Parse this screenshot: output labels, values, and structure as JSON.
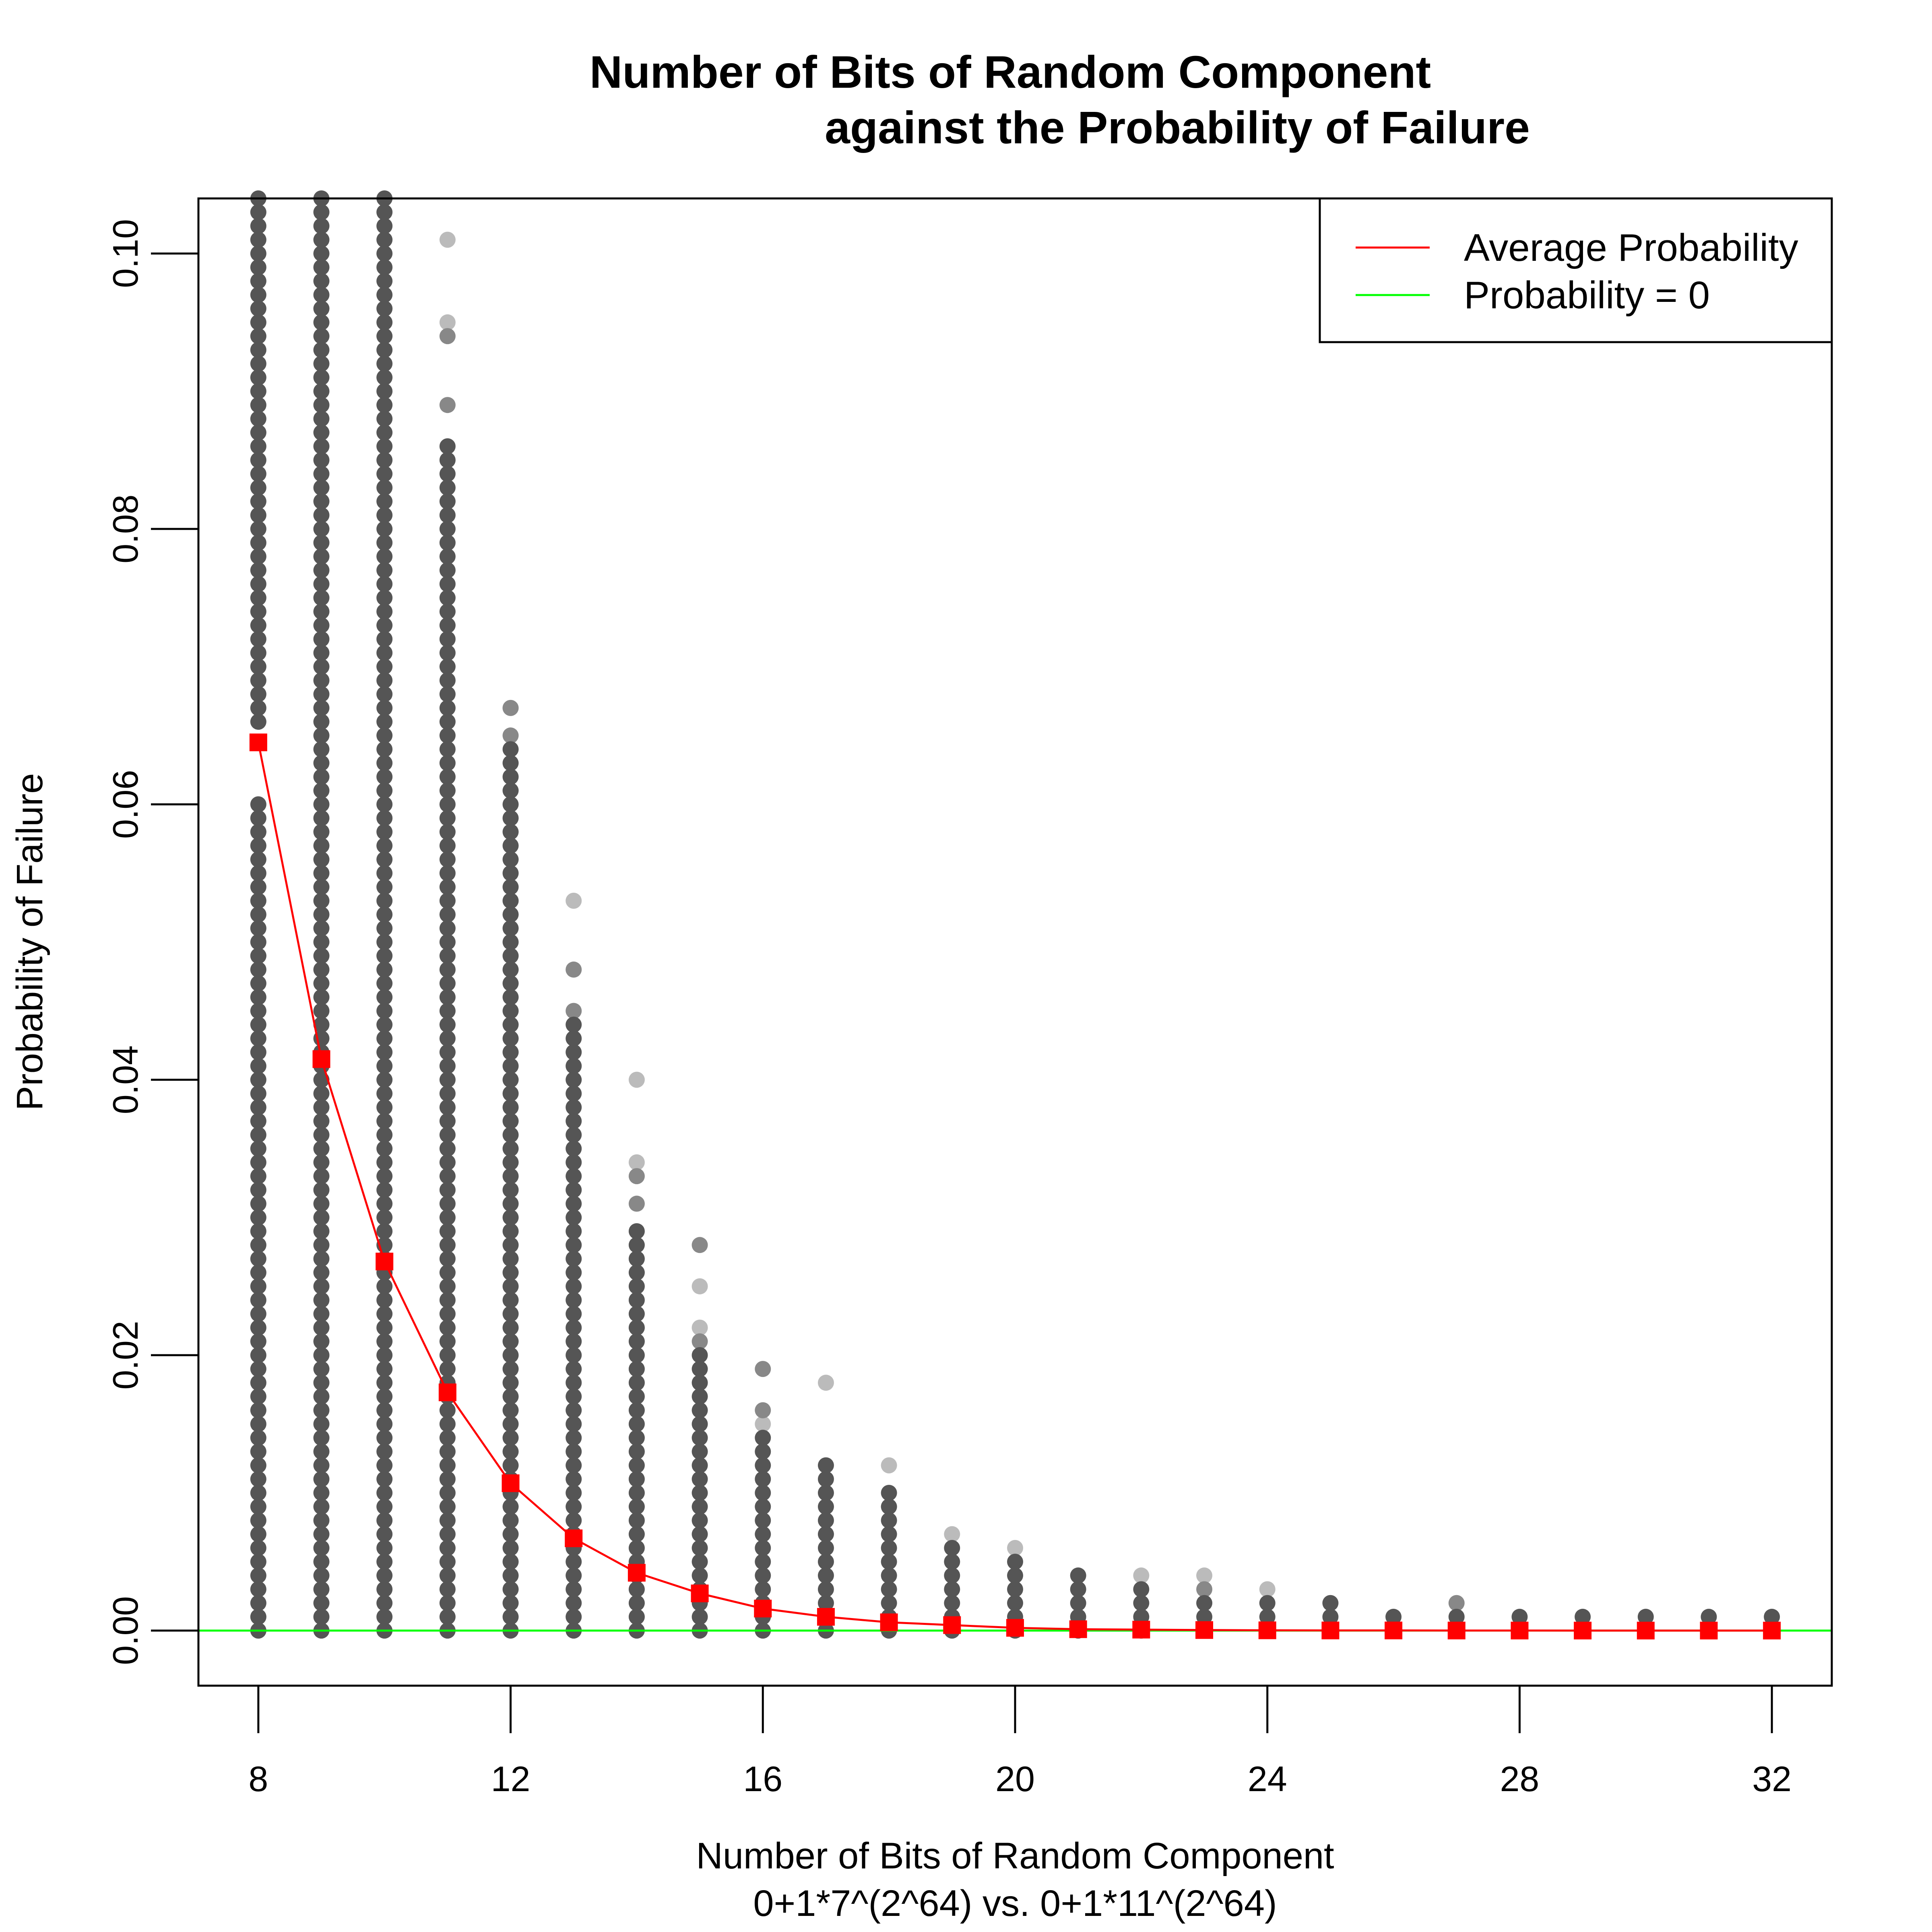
{
  "chart_data": {
    "type": "scatter",
    "title_line1": "Number of Bits of Random Component",
    "title_line2": "against the Probability of Failure",
    "xlabel_line1": "Number of Bits of Random Component",
    "xlabel_line2": "0+1*7^(2^64) vs. 0+1*11^(2^64)",
    "ylabel": "Probability of Failure",
    "xlim": [
      7.05,
      32.95
    ],
    "ylim": [
      -0.004,
      0.104
    ],
    "x_ticks": [
      "8",
      "12",
      "16",
      "20",
      "24",
      "28",
      "32"
    ],
    "y_ticks": [
      "0.00",
      "0.02",
      "0.04",
      "0.06",
      "0.08",
      "0.10"
    ],
    "legend": {
      "position": "top-right",
      "entries": [
        {
          "label": "Average Probability",
          "color": "#ff0000"
        },
        {
          "label": "Probability = 0",
          "color": "#00ff00"
        }
      ]
    },
    "colors": {
      "dense_points": "#555555",
      "mid_points": "#888888",
      "sparse_points": "#bbbbbb",
      "average": "#ff0000",
      "zero_line": "#00ff00"
    },
    "reference_line": {
      "y": 0
    },
    "series": [
      {
        "name": "Average Probability",
        "x": [
          8,
          9,
          10,
          11,
          12,
          13,
          14,
          15,
          16,
          17,
          18,
          19,
          20,
          21,
          22,
          23,
          24,
          25,
          26,
          27,
          28,
          29,
          30,
          31,
          32
        ],
        "y": [
          0.0645,
          0.0415,
          0.0268,
          0.0173,
          0.0107,
          0.0067,
          0.0042,
          0.0027,
          0.0016,
          0.001,
          0.0006,
          0.0004,
          0.0002,
          0.0001,
          7e-05,
          4e-05,
          2e-05,
          1e-05,
          1e-05,
          5e-06,
          3e-06,
          2e-06,
          1e-06,
          1e-06,
          1e-06
        ]
      }
    ],
    "point_columns": [
      {
        "x": 8,
        "dense": [
          0.0,
          0.06,
          0.066,
          0.104
        ],
        "mid": [
          0.049,
          0.058
        ],
        "sparse": [
          0.0,
          0.001,
          0.051,
          0.057
        ]
      },
      {
        "x": 9,
        "dense": [
          0.0,
          0.104
        ],
        "mid": [],
        "sparse": [
          0.02
        ]
      },
      {
        "x": 10,
        "dense": [
          0.0,
          0.104
        ],
        "mid": [],
        "sparse": []
      },
      {
        "x": 11,
        "dense": [
          0.0,
          0.086
        ],
        "mid": [
          0.089,
          0.094
        ],
        "sparse": [
          0.085,
          0.095,
          0.101
        ]
      },
      {
        "x": 12,
        "dense": [
          0.0,
          0.064
        ],
        "mid": [
          0.065,
          0.067
        ],
        "sparse": [
          0.053,
          0.067
        ]
      },
      {
        "x": 13,
        "dense": [
          0.0,
          0.044
        ],
        "mid": [
          0.045,
          0.048
        ],
        "sparse": [
          0.041,
          0.053
        ]
      },
      {
        "x": 14,
        "dense": [
          0.0,
          0.029
        ],
        "mid": [
          0.031,
          0.033
        ],
        "sparse": [
          0.034,
          0.04
        ]
      },
      {
        "x": 15,
        "dense": [
          0.0,
          0.02
        ],
        "mid": [
          0.021,
          0.028
        ],
        "sparse": [
          0.022,
          0.025
        ]
      },
      {
        "x": 16,
        "dense": [
          0.0,
          0.014
        ],
        "mid": [
          0.016,
          0.019
        ],
        "sparse": [
          0.015
        ]
      },
      {
        "x": 17,
        "dense": [
          0.0,
          0.012
        ],
        "mid": [],
        "sparse": [
          0.018
        ]
      },
      {
        "x": 18,
        "dense": [
          0.0,
          0.01
        ],
        "mid": [],
        "sparse": [
          0.009,
          0.012
        ]
      },
      {
        "x": 19,
        "dense": [
          0.0,
          0.006
        ],
        "mid": [],
        "sparse": [
          0.007
        ]
      },
      {
        "x": 20,
        "dense": [
          0.0,
          0.005
        ],
        "mid": [],
        "sparse": [
          0.006
        ]
      },
      {
        "x": 21,
        "dense": [
          0.0,
          0.004
        ],
        "mid": [],
        "sparse": []
      },
      {
        "x": 22,
        "dense": [
          0.0,
          0.003
        ],
        "mid": [],
        "sparse": [
          0.004
        ]
      },
      {
        "x": 23,
        "dense": [
          0.0,
          0.002
        ],
        "mid": [
          0.003
        ],
        "sparse": [
          0.004
        ]
      },
      {
        "x": 24,
        "dense": [
          0.0,
          0.002
        ],
        "mid": [],
        "sparse": [
          0.003
        ]
      },
      {
        "x": 25,
        "dense": [
          0.0,
          0.002
        ],
        "mid": [],
        "sparse": []
      },
      {
        "x": 26,
        "dense": [
          0.0,
          0.001
        ],
        "mid": [],
        "sparse": []
      },
      {
        "x": 27,
        "dense": [
          0.0,
          0.001
        ],
        "mid": [
          0.002
        ],
        "sparse": []
      },
      {
        "x": 28,
        "dense": [
          0.0,
          0.001
        ],
        "mid": [],
        "sparse": []
      },
      {
        "x": 29,
        "dense": [
          0.0,
          0.001
        ],
        "mid": [],
        "sparse": []
      },
      {
        "x": 30,
        "dense": [
          0.0,
          0.001
        ],
        "mid": [],
        "sparse": []
      },
      {
        "x": 31,
        "dense": [
          0.0,
          0.001
        ],
        "mid": [],
        "sparse": []
      },
      {
        "x": 32,
        "dense": [
          0.0,
          0.001
        ],
        "mid": [],
        "sparse": []
      }
    ]
  }
}
